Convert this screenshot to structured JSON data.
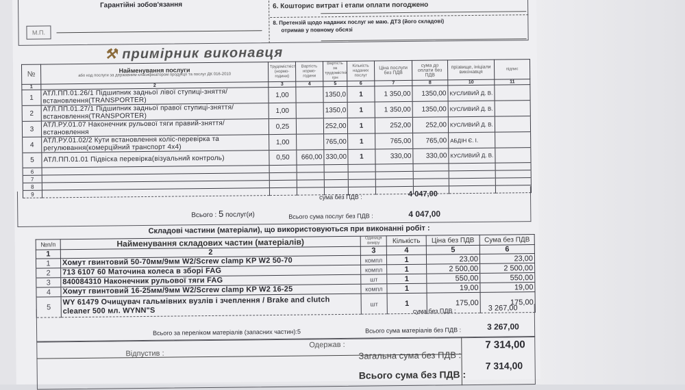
{
  "top": {
    "guarantee": "Гарантійні зобов'язання",
    "stamp": "М.П.",
    "item6": "6. Кошторис витрат і етапи оплати погоджено",
    "item8_line1": "8. Претензій щодо наданих послуг не маю. ДТЗ (його складові)",
    "item8_line2": "отримав у повному обсязі"
  },
  "title": "примірник виконавця",
  "services": {
    "headers": [
      "№",
      "Найменування послуги",
      "або код послуги за державним класифікатором продукції та послуг ДК 016-2010",
      "Трудомісткість (нормо-години)",
      "Вартість нормо-години",
      "Вартість за трудомісткістю, грн",
      "Кількість наданих послуг",
      "Ціна послуги без ПДВ",
      "сума до оплати без ПДВ",
      "прізвище, ініціали виконавця",
      "підпис"
    ],
    "col_numbers": [
      "1",
      "2",
      "3",
      "4",
      "5",
      "6",
      "7",
      "8",
      "10",
      "11"
    ],
    "rows": [
      {
        "n": "1",
        "name": "АТЛ.ПП.01.26/1 Підшипник задньої лівої ступиці-зняття/встановлення(TRANSPORTER)",
        "hours": "1,00",
        "rate": "",
        "cost": "1350,0",
        "qty": "1",
        "price": "1 350,00",
        "sum": "1350,00",
        "worker": "КУСЛИВИЙ Д. В."
      },
      {
        "n": "2",
        "name": "АТЛ.ПП.01.27/1 Підшипник задньої правої ступиці-зняття/встановлення(TRANSPORTER)",
        "hours": "1,00",
        "rate": "",
        "cost": "1350,0",
        "qty": "1",
        "price": "1 350,00",
        "sum": "1350,00",
        "worker": "КУСЛИВИЙ Д. В."
      },
      {
        "n": "3",
        "name": "АТЛ.РУ.01.07 Наконечник рульової тяги правий-зняття/встановлення",
        "hours": "0,25",
        "rate": "",
        "cost": "252,00",
        "qty": "1",
        "price": "252,00",
        "sum": "252,00",
        "worker": "КУСЛИВИЙ Д. В."
      },
      {
        "n": "4",
        "name": "АТЛ.РУ.01.02/2 Кути встановлення коліс-перевірка та регулювання(комерційний транспорт 4x4)",
        "hours": "1,00",
        "rate": "",
        "cost": "765,00",
        "qty": "1",
        "price": "765,00",
        "sum": "765,00",
        "worker": "АБДІН Є. І."
      },
      {
        "n": "5",
        "name": "АТЛ.ПП.01.01 Підвіска перевірка(візуальний контроль)",
        "hours": "0,50",
        "rate": "660,00",
        "cost": "330,00",
        "qty": "1",
        "price": "330,00",
        "sum": "330,00",
        "worker": "КУСЛИВИЙ Д. В."
      }
    ],
    "empty_rows": [
      "6",
      "7",
      "8",
      "9"
    ],
    "sum_label": "сума без ПДВ :",
    "sum_value": "4 047,00",
    "count_label": "Всього :",
    "count_value": "5",
    "count_unit": "послуг(и)",
    "total_label": "Всього сума послуг без ПДВ :",
    "total_value": "4 047,00"
  },
  "materials": {
    "title": "Складові частини (матеріали), що використовуються при виконанні робіт :",
    "headers": [
      "№п/п",
      "Найменування складових частин (матеріалів)",
      "Одиниця виміру",
      "Кількість",
      "Ціна без ПДВ",
      "Сума без ПДВ"
    ],
    "col_numbers": [
      "1",
      "2",
      "3",
      "4",
      "5",
      "6"
    ],
    "rows": [
      {
        "n": "1",
        "name": "Хомут гвинтовий 50-70мм/9мм W2/Screw clamp KP W2 50-70",
        "unit": "компл",
        "qty": "1",
        "price": "23,00",
        "sum": "23,00"
      },
      {
        "n": "2",
        "name": "713 6107 60 Маточина колеса в зборі FAG",
        "unit": "компл",
        "qty": "1",
        "price": "2 500,00",
        "sum": "2 500,00"
      },
      {
        "n": "3",
        "name": "840084310 Наконечник рульової тяги FAG",
        "unit": "шт",
        "qty": "1",
        "price": "550,00",
        "sum": "550,00"
      },
      {
        "n": "4",
        "name": "Хомут гвинтовий 16-25мм/9мм W2/Screw clamp KP W2 16-25",
        "unit": "компл",
        "qty": "1",
        "price": "19,00",
        "sum": "19,00"
      },
      {
        "n": "5",
        "name": "WY 61479 Очищувач гальмівних вузлів і зчеплення / Brake and clutch cleaner 500 мл. WYNN\"S",
        "unit": "шт",
        "qty": "1",
        "price": "175,00",
        "sum": "175,00"
      }
    ],
    "sum_label": "сума без ПДВ :",
    "sum_value": "3 267,00",
    "count_label": "Всього за переліком матеріалів (запасних частин):",
    "count_value": "5",
    "total_label": "Всього сума матеріалів без ПДВ :",
    "total_value": "3 267,00"
  },
  "footer": {
    "released": "Відпустив :",
    "received": "Одержав :",
    "grand_label": "Загальна сума без ПДВ :",
    "grand_value": "7 314,00",
    "total_label": "Всього сума без ПДВ :",
    "total_value": "7 314,00"
  }
}
